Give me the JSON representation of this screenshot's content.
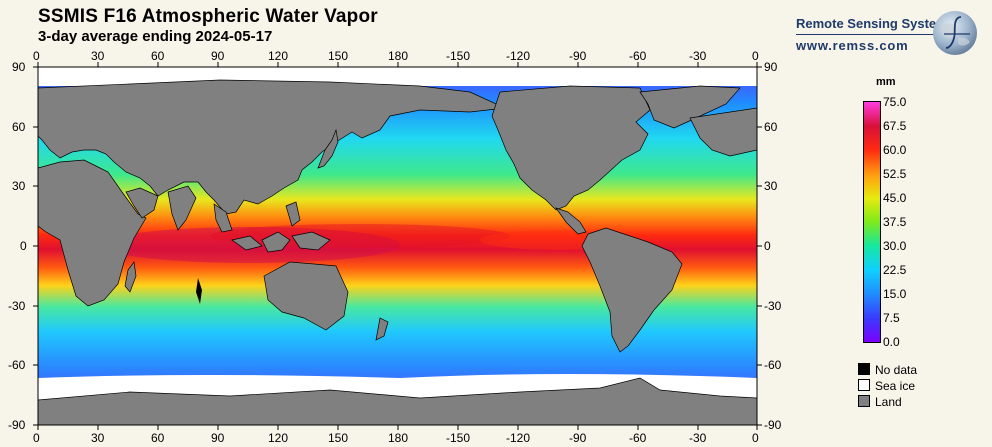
{
  "header": {
    "title": "SSMIS F16 Atmospheric Water Vapor",
    "subtitle": "3-day average ending 2024-05-17"
  },
  "brand": {
    "name": "Remote Sensing Systems",
    "url": "www.remss.com"
  },
  "map": {
    "longitude_ticks": [
      "0",
      "30",
      "60",
      "90",
      "120",
      "150",
      "180",
      "-150",
      "-120",
      "-90",
      "-60",
      "-30",
      "0"
    ],
    "latitude_ticks": [
      "90",
      "60",
      "30",
      "0",
      "-30",
      "-60",
      "-90"
    ],
    "colors": {
      "land": "#808080",
      "sea_ice": "#ffffff",
      "no_data": "#000000"
    }
  },
  "colorbar": {
    "unit": "mm",
    "labels": [
      "75.0",
      "67.5",
      "60.0",
      "52.5",
      "45.0",
      "37.5",
      "30.0",
      "22.5",
      "15.0",
      "7.5",
      "0.0"
    ],
    "range": [
      0,
      75
    ]
  },
  "legend": [
    {
      "label": "No data",
      "color": "#000000"
    },
    {
      "label": "Sea ice",
      "color": "#ffffff"
    },
    {
      "label": "Land",
      "color": "#808080"
    }
  ]
}
